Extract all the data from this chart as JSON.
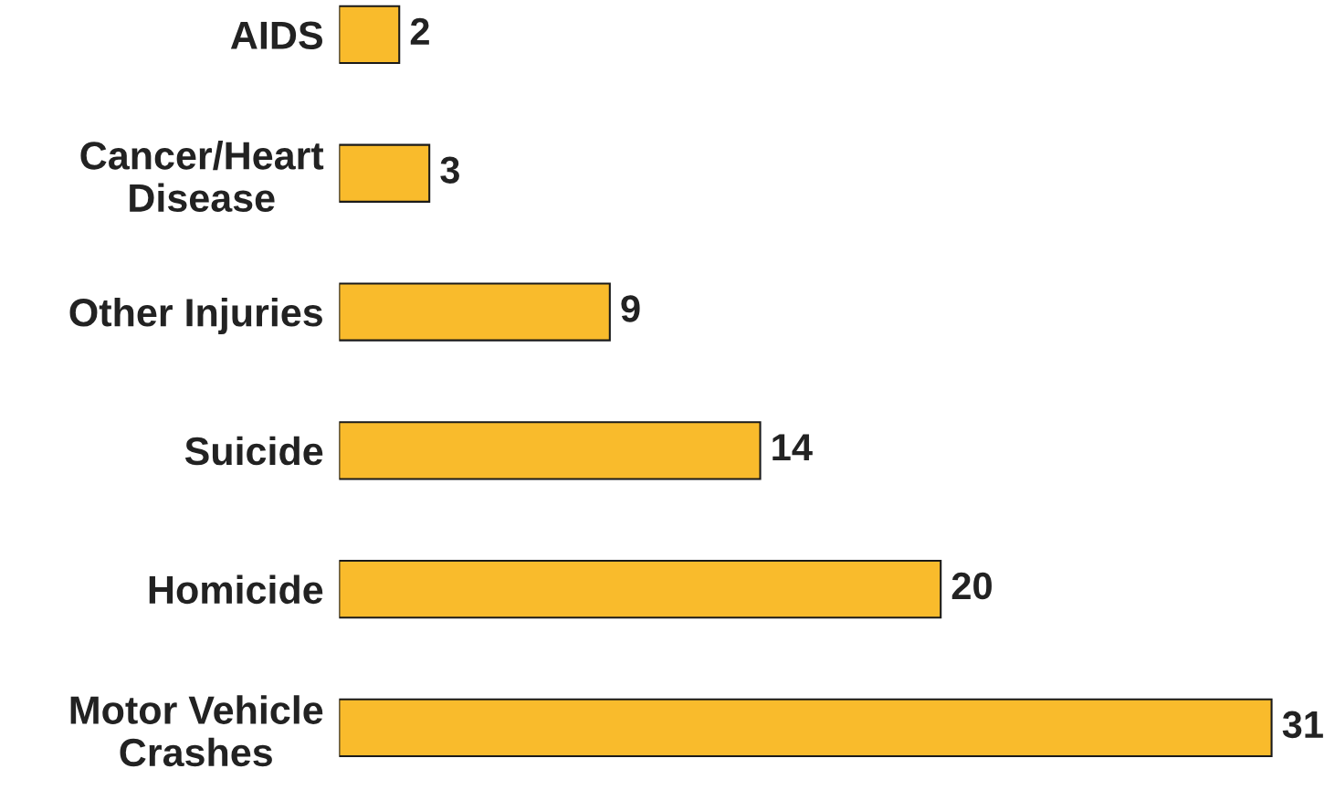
{
  "chart_data": {
    "type": "bar",
    "orientation": "horizontal",
    "categories": [
      "AIDS",
      "Cancer/Heart\nDisease",
      "Other Injuries",
      "Suicide",
      "Homicide",
      "Motor Vehicle\nCrashes"
    ],
    "values": [
      2,
      3,
      9,
      14,
      20,
      31
    ],
    "color": "#f9bb2c",
    "data_labels": true,
    "grid": false,
    "legend": false
  }
}
